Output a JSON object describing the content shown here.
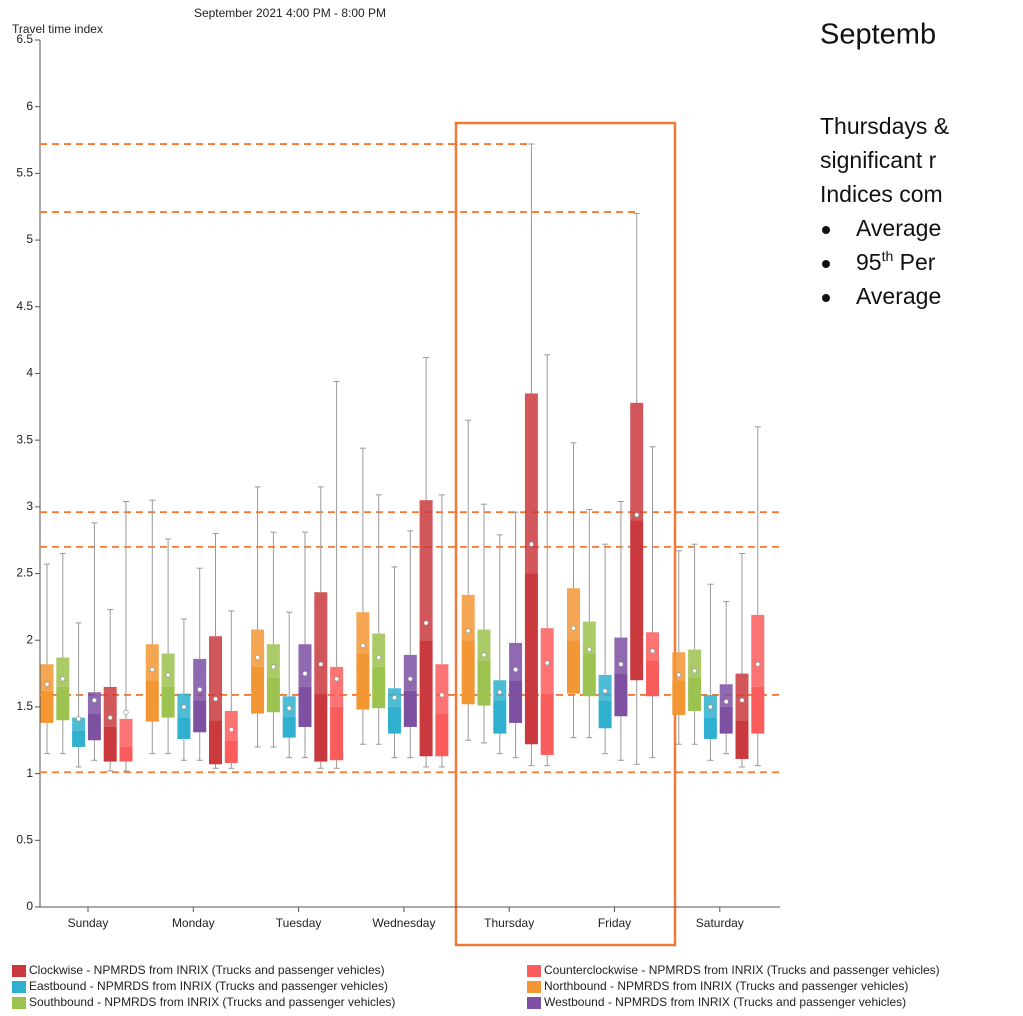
{
  "chart_data": {
    "type": "box",
    "title": "September 2021 4:00 PM - 8:00 PM",
    "ylabel": "Travel time index",
    "categories": [
      "Sunday",
      "Monday",
      "Tuesday",
      "Wednesday",
      "Thursday",
      "Friday",
      "Saturday"
    ],
    "ylim": [
      0,
      6.5
    ],
    "yticks": [
      0,
      0.5,
      1,
      1.5,
      2,
      2.5,
      3,
      3.5,
      4,
      4.5,
      5,
      5.5,
      6,
      6.5
    ],
    "reference_lines": [
      5.72,
      5.21,
      2.96,
      2.7,
      1.59,
      1.01
    ],
    "series": [
      {
        "name": "Clockwise - NPMRDS from INRIX (Trucks and passenger vehicles)",
        "color": "#c9393d",
        "min": [
          1.02,
          1.04,
          1.04,
          1.05,
          1.06,
          1.07,
          1.05
        ],
        "q1": [
          1.09,
          1.07,
          1.09,
          1.13,
          1.22,
          1.7,
          1.11
        ],
        "median": [
          1.35,
          1.4,
          1.6,
          2.0,
          2.5,
          2.9,
          1.4
        ],
        "q3": [
          1.65,
          2.03,
          2.36,
          3.05,
          3.85,
          3.78,
          1.75
        ],
        "max": [
          2.23,
          2.8,
          3.15,
          4.12,
          5.72,
          5.2,
          2.65
        ],
        "mean": [
          1.42,
          1.56,
          1.82,
          2.13,
          2.72,
          2.94,
          1.55
        ]
      },
      {
        "name": "Counterclockwise - NPMRDS from INRIX (Trucks and passenger vehicles)",
        "color": "#fb5c5c",
        "min": [
          1.02,
          1.04,
          1.04,
          1.05,
          1.06,
          1.12,
          1.06
        ],
        "q1": [
          1.09,
          1.08,
          1.1,
          1.13,
          1.14,
          1.58,
          1.3
        ],
        "median": [
          1.2,
          1.25,
          1.5,
          1.45,
          1.6,
          1.85,
          1.65
        ],
        "q3": [
          1.41,
          1.47,
          1.8,
          1.82,
          2.09,
          2.06,
          2.19
        ],
        "max": [
          3.04,
          2.22,
          3.94,
          3.09,
          4.14,
          3.45,
          3.6
        ],
        "mean": [
          1.46,
          1.33,
          1.71,
          1.59,
          1.83,
          1.92,
          1.82
        ]
      },
      {
        "name": "Eastbound - NPMRDS from INRIX (Trucks and passenger vehicles)",
        "color": "#30b0cf",
        "min": [
          1.05,
          1.1,
          1.12,
          1.12,
          1.15,
          1.15,
          1.1
        ],
        "q1": [
          1.2,
          1.26,
          1.27,
          1.3,
          1.3,
          1.34,
          1.26
        ],
        "median": [
          1.32,
          1.42,
          1.43,
          1.5,
          1.55,
          1.55,
          1.42
        ],
        "q3": [
          1.42,
          1.6,
          1.58,
          1.64,
          1.7,
          1.74,
          1.59
        ],
        "max": [
          2.13,
          2.16,
          2.21,
          2.55,
          2.79,
          2.72,
          2.42
        ],
        "mean": [
          1.41,
          1.5,
          1.49,
          1.57,
          1.61,
          1.62,
          1.5
        ]
      },
      {
        "name": "Northbound - NPMRDS from INRIX (Trucks and passenger vehicles)",
        "color": "#f39634",
        "min": [
          1.15,
          1.15,
          1.2,
          1.22,
          1.25,
          1.27,
          1.22
        ],
        "q1": [
          1.38,
          1.39,
          1.45,
          1.48,
          1.52,
          1.6,
          1.44
        ],
        "median": [
          1.62,
          1.7,
          1.8,
          1.9,
          2.0,
          2.0,
          1.7
        ],
        "q3": [
          1.82,
          1.97,
          2.08,
          2.21,
          2.34,
          2.39,
          1.91
        ],
        "max": [
          2.57,
          3.05,
          3.15,
          3.44,
          3.65,
          3.48,
          2.67
        ],
        "mean": [
          1.67,
          1.78,
          1.87,
          1.96,
          2.07,
          2.09,
          1.74
        ]
      },
      {
        "name": "Southbound - NPMRDS from INRIX (Trucks and passenger vehicles)",
        "color": "#9cc24f",
        "min": [
          1.15,
          1.15,
          1.2,
          1.22,
          1.23,
          1.27,
          1.22
        ],
        "q1": [
          1.4,
          1.42,
          1.46,
          1.49,
          1.51,
          1.58,
          1.47
        ],
        "median": [
          1.65,
          1.65,
          1.72,
          1.8,
          1.85,
          1.9,
          1.72
        ],
        "q3": [
          1.87,
          1.9,
          1.97,
          2.05,
          2.08,
          2.14,
          1.93
        ],
        "max": [
          2.65,
          2.76,
          2.81,
          3.09,
          3.02,
          2.98,
          2.72
        ],
        "mean": [
          1.71,
          1.74,
          1.8,
          1.87,
          1.89,
          1.93,
          1.77
        ]
      },
      {
        "name": "Westbound - NPMRDS from INRIX (Trucks and passenger vehicles)",
        "color": "#7d50a2",
        "min": [
          1.1,
          1.1,
          1.12,
          1.12,
          1.12,
          1.1,
          1.15
        ],
        "q1": [
          1.25,
          1.31,
          1.35,
          1.35,
          1.38,
          1.43,
          1.3
        ],
        "median": [
          1.45,
          1.55,
          1.65,
          1.62,
          1.7,
          1.75,
          1.5
        ],
        "q3": [
          1.61,
          1.86,
          1.97,
          1.89,
          1.98,
          2.02,
          1.67
        ],
        "max": [
          2.88,
          2.54,
          2.81,
          2.82,
          2.96,
          3.04,
          2.29
        ],
        "mean": [
          1.55,
          1.63,
          1.75,
          1.71,
          1.78,
          1.82,
          1.54
        ]
      }
    ]
  },
  "side_text": {
    "heading": "Septemb",
    "paragraph": [
      "Thursdays &",
      "significant r",
      "Indices com"
    ],
    "bullet_0": "Average",
    "bullet_1": {
      "number": "95",
      "sup": "th",
      "rest": " Per"
    },
    "bullet_2": "Average"
  }
}
